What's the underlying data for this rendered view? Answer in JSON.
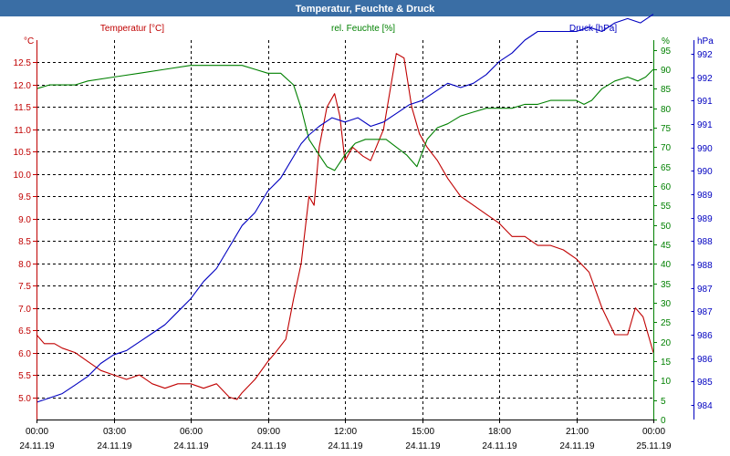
{
  "window": {
    "title": "Temperatur, Feuchte & Druck"
  },
  "colors": {
    "temperature": "#c00000",
    "humidity": "#008000",
    "pressure": "#0000c0",
    "title_bar": "#3a6ea5",
    "grid": "#000000"
  },
  "chart_data": {
    "type": "line",
    "title": "Temperatur, Feuchte & Druck",
    "legend": {
      "temperature": "Temperatur [°C]",
      "humidity": "rel. Feuchte [%]",
      "pressure": "Druck [hPa]"
    },
    "units": {
      "left": "°C",
      "right1": "%",
      "right2": "hPa"
    },
    "xlim": [
      0,
      24
    ],
    "x_ticks": [
      {
        "value": 0,
        "time": "00:00",
        "date": "24.11.19"
      },
      {
        "value": 3,
        "time": "03:00",
        "date": "24.11.19"
      },
      {
        "value": 6,
        "time": "06:00",
        "date": "24.11.19"
      },
      {
        "value": 9,
        "time": "09:00",
        "date": "24.11.19"
      },
      {
        "value": 12,
        "time": "12:00",
        "date": "24.11.19"
      },
      {
        "value": 15,
        "time": "15:00",
        "date": "24.11.19"
      },
      {
        "value": 18,
        "time": "18:00",
        "date": "24.11.19"
      },
      {
        "value": 21,
        "time": "21:00",
        "date": "24.11.19"
      },
      {
        "value": 24,
        "time": "00:00",
        "date": "25.11.19"
      }
    ],
    "axes": {
      "temperature": {
        "ylim": [
          4.5,
          13.0
        ],
        "ticks": [
          "5.0",
          "5.5",
          "6.0",
          "6.5",
          "7.0",
          "7.5",
          "8.0",
          "8.5",
          "9.0",
          "9.5",
          "10.0",
          "10.5",
          "11.0",
          "11.5",
          "12.0",
          "12.5"
        ]
      },
      "humidity": {
        "ylim": [
          0,
          97.5
        ],
        "ticks": [
          "0",
          "5",
          "10",
          "15",
          "20",
          "25",
          "30",
          "35",
          "40",
          "45",
          "50",
          "55",
          "60",
          "65",
          "70",
          "75",
          "80",
          "85",
          "90",
          "95"
        ]
      },
      "pressure": {
        "ylim": [
          983.5,
          992.3
        ],
        "ticks": [
          "984",
          "985",
          "986",
          "986",
          "987",
          "987",
          "988",
          "988",
          "989",
          "989",
          "990",
          "990",
          "991",
          "991",
          "992",
          "992"
        ]
      }
    },
    "series": [
      {
        "name": "Temperatur [°C]",
        "axis": "temperature",
        "x": [
          0,
          0.3,
          0.7,
          1,
          1.5,
          2,
          2.5,
          3,
          3.5,
          4,
          4.5,
          5,
          5.5,
          6,
          6.5,
          7,
          7.5,
          7.8,
          8,
          8.5,
          9,
          9.3,
          9.7,
          10,
          10.3,
          10.6,
          10.8,
          11,
          11.3,
          11.6,
          11.8,
          12,
          12.3,
          12.7,
          13,
          13.5,
          14,
          14.3,
          14.6,
          14.9,
          15.2,
          15.6,
          16,
          16.5,
          17,
          17.5,
          18,
          18.5,
          19,
          19.5,
          20,
          20.5,
          21,
          21.5,
          22,
          22.5,
          23,
          23.3,
          23.6,
          24
        ],
        "values": [
          6.4,
          6.2,
          6.2,
          6.1,
          6.0,
          5.8,
          5.6,
          5.5,
          5.4,
          5.5,
          5.3,
          5.2,
          5.3,
          5.3,
          5.2,
          5.3,
          5.0,
          4.95,
          5.1,
          5.4,
          5.8,
          6.0,
          6.3,
          7.2,
          8.0,
          9.5,
          9.3,
          10.6,
          11.5,
          11.8,
          11.3,
          10.3,
          10.6,
          10.4,
          10.3,
          11.0,
          12.7,
          12.6,
          11.5,
          10.9,
          10.6,
          10.3,
          9.9,
          9.5,
          9.3,
          9.1,
          8.9,
          8.6,
          8.6,
          8.4,
          8.4,
          8.3,
          8.1,
          7.8,
          7.0,
          6.4,
          6.4,
          7.0,
          6.8,
          6.0
        ]
      },
      {
        "name": "rel. Feuchte [%]",
        "axis": "humidity",
        "x": [
          0,
          0.5,
          1,
          1.5,
          2,
          3,
          4,
          5,
          6,
          7,
          7.5,
          8,
          8.5,
          9,
          9.5,
          10,
          10.3,
          10.6,
          11,
          11.3,
          11.6,
          12,
          12.4,
          12.8,
          13.2,
          13.6,
          14,
          14.4,
          14.8,
          15.2,
          15.6,
          16,
          16.5,
          17,
          17.5,
          18,
          18.5,
          19,
          19.5,
          20,
          20.5,
          21,
          21.3,
          21.6,
          22,
          22.5,
          23,
          23.4,
          23.7,
          24
        ],
        "values": [
          85,
          86,
          86,
          86,
          87,
          88,
          89,
          90,
          91,
          91,
          91,
          91,
          90,
          89,
          89,
          86,
          80,
          72,
          68,
          65,
          64,
          68,
          71,
          72,
          72,
          72,
          70,
          68,
          65,
          72,
          75,
          76,
          78,
          79,
          80,
          80,
          80,
          81,
          81,
          82,
          82,
          82,
          81,
          82,
          85,
          87,
          88,
          87,
          88,
          90
        ]
      },
      {
        "name": "Druck [hPa]",
        "axis": "pressure",
        "x": [
          0,
          0.5,
          1,
          1.5,
          2,
          2.5,
          3,
          3.5,
          4,
          4.5,
          5,
          5.5,
          6,
          6.5,
          7,
          7.5,
          8,
          8.5,
          9,
          9.5,
          10,
          10.3,
          10.6,
          11,
          11.5,
          12,
          12.5,
          13,
          13.5,
          14,
          14.5,
          15,
          15.5,
          16,
          16.5,
          17,
          17.5,
          18,
          18.5,
          19,
          19.5,
          20,
          20.5,
          21,
          21.5,
          22,
          22.5,
          23,
          23.5,
          24
        ],
        "values": [
          983.9,
          984.0,
          984.1,
          984.3,
          984.5,
          984.8,
          985.0,
          985.1,
          985.3,
          985.5,
          985.7,
          986.0,
          986.3,
          986.7,
          987.0,
          987.5,
          988.0,
          988.3,
          988.8,
          989.1,
          989.6,
          989.9,
          990.1,
          990.3,
          990.5,
          990.4,
          990.5,
          990.3,
          990.4,
          990.6,
          990.8,
          990.9,
          991.1,
          991.3,
          991.2,
          991.3,
          991.5,
          991.8,
          992.0,
          992.3,
          992.5,
          992.5,
          992.5,
          992.5,
          992.6,
          992.5,
          992.7,
          992.8,
          992.7,
          992.9
        ]
      }
    ],
    "grid": true
  }
}
